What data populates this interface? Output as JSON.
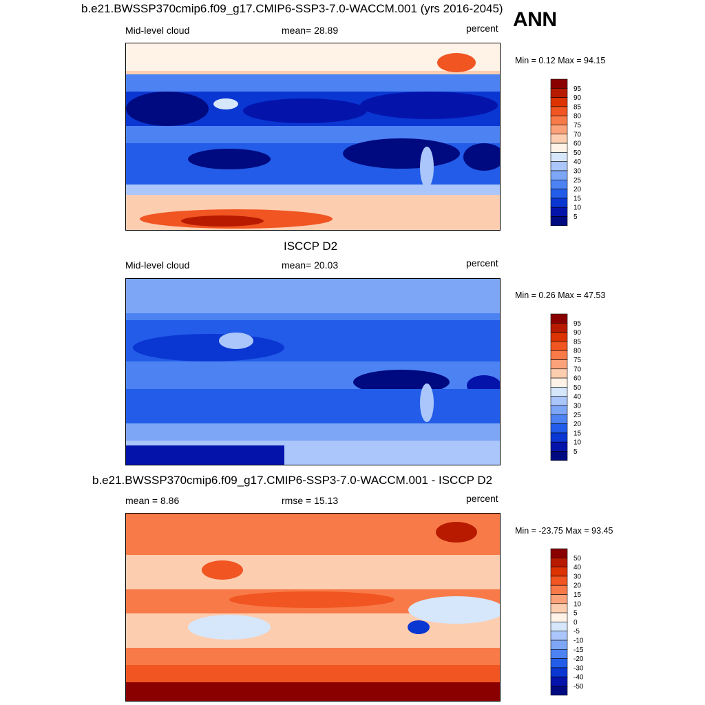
{
  "season": "ANN",
  "panels": [
    {
      "title": "b.e21.BWSSP370cmip6.f09_g17.CMIP6-SSP3-7.0-WACCM.001 (yrs 2016-2045)",
      "left_label": "Mid-level cloud",
      "center_label": "mean=  28.89",
      "right_label": "percent",
      "minmax": "Min =   0.12 Max =  94.15"
    },
    {
      "title": "ISCCP D2",
      "left_label": "Mid-level cloud",
      "center_label": "mean=  20.03",
      "right_label": "percent",
      "minmax": "Min =   0.26 Max =  47.53"
    },
    {
      "title": "b.e21.BWSSP370cmip6.f09_g17.CMIP6-SSP3-7.0-WACCM.001 - ISCCP D2",
      "left_label": "mean =   8.86",
      "center_label": "rmse =  15.13",
      "right_label": "percent",
      "minmax": "Min = -23.75 Max =  93.45"
    }
  ],
  "colorbars": {
    "abs_levels": [
      "95",
      "90",
      "85",
      "80",
      "75",
      "70",
      "60",
      "50",
      "40",
      "30",
      "25",
      "20",
      "15",
      "10",
      "5"
    ],
    "diff_levels": [
      "50",
      "40",
      "30",
      "20",
      "15",
      "10",
      "5",
      "0",
      "-5",
      "-10",
      "-15",
      "-20",
      "-30",
      "-40",
      "-50"
    ],
    "colors": [
      "#8a0000",
      "#b81a00",
      "#dd3300",
      "#f05522",
      "#f87a48",
      "#fba27a",
      "#fdcdb0",
      "#fff2e6",
      "#d6e6fb",
      "#aac6fa",
      "#7ea6f6",
      "#4d82f3",
      "#225ce8",
      "#0a36d2",
      "#0414ab",
      "#000a80"
    ]
  },
  "map_palette": {
    "deep_blue": "#000a80",
    "blue": "#0a36d2",
    "mid_blue": "#4d82f3",
    "light_blue": "#aac6fa",
    "pale": "#fff2e6",
    "peach": "#fdcdb0",
    "orange": "#f87a48",
    "red": "#dd3300",
    "dark_red": "#8a0000"
  }
}
